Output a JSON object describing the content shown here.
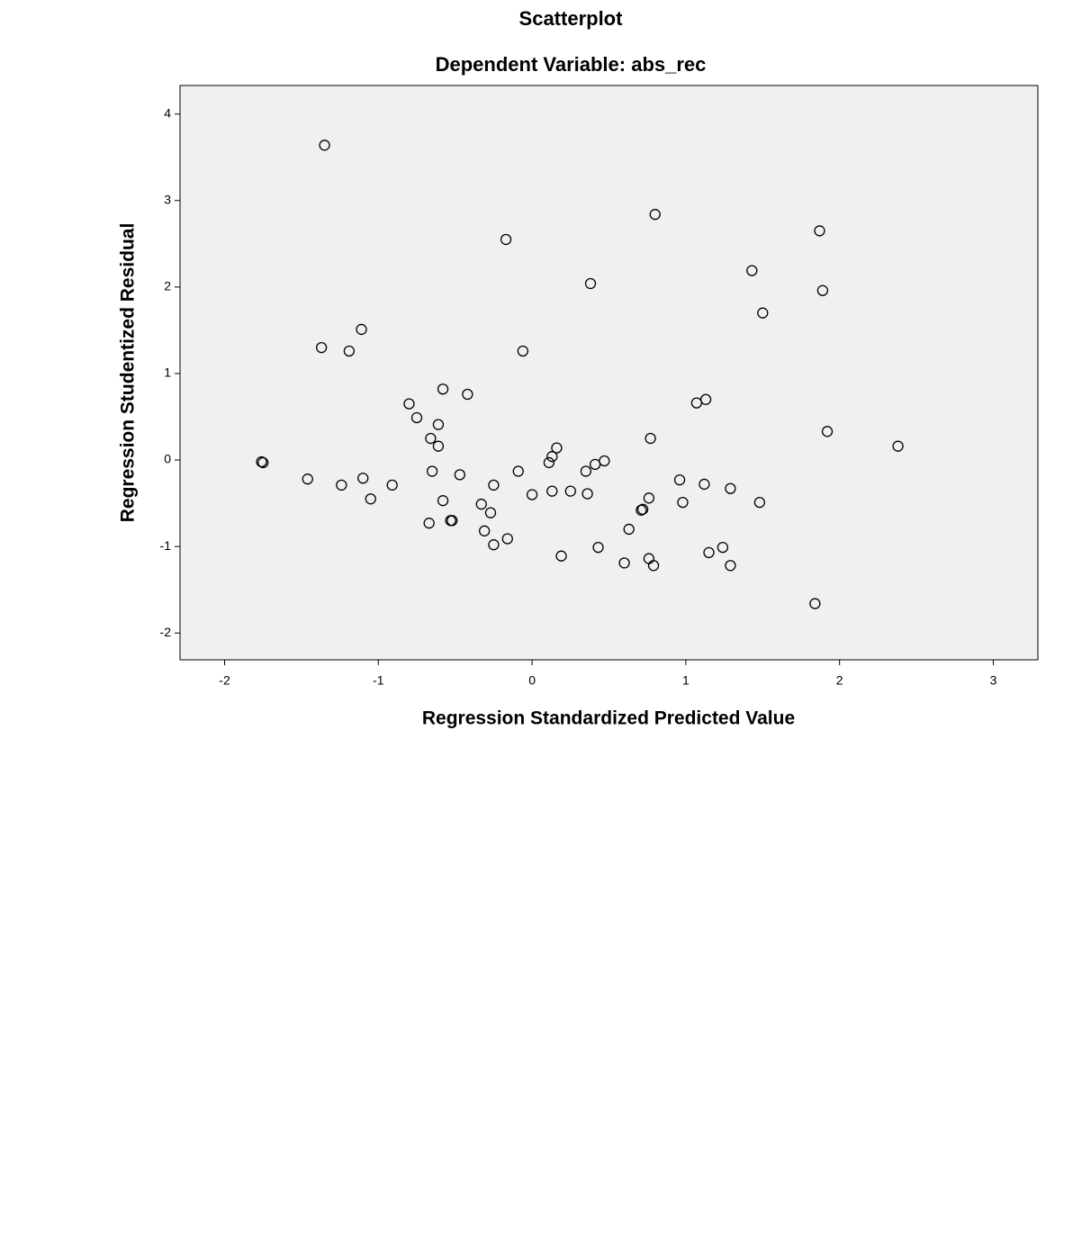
{
  "chart_data": {
    "type": "scatter",
    "title": "Scatterplot",
    "subtitle": "Dependent Variable: abs_rec",
    "x_label": "Regression Standardized Predicted Value",
    "y_label": "Regression Studentized Residual",
    "x": [
      -1.35,
      0.8,
      1.87,
      -0.17,
      1.43,
      0.38,
      1.89,
      1.5,
      -1.11,
      -1.37,
      -1.19,
      -0.06,
      -0.58,
      -0.42,
      1.13,
      1.07,
      -0.8,
      -0.75,
      -0.61,
      -0.66,
      0.77,
      1.92,
      2.38,
      -0.61,
      0.16,
      0.13,
      0.11,
      0.47,
      0.41,
      -1.76,
      -1.75,
      -1.46,
      -1.24,
      -1.1,
      -1.05,
      -0.91,
      -0.65,
      -0.47,
      -0.58,
      -0.25,
      -0.09,
      0.35,
      0.96,
      1.12,
      1.29,
      0.0,
      0.13,
      0.25,
      0.36,
      0.76,
      0.98,
      1.48,
      -0.33,
      -0.27,
      0.71,
      0.72,
      -0.67,
      -0.53,
      -0.52,
      -0.31,
      0.63,
      -0.16,
      -0.25,
      0.43,
      1.24,
      1.15,
      0.19,
      0.6,
      0.76,
      0.79,
      1.29,
      1.84
    ],
    "y": [
      3.64,
      2.84,
      2.65,
      2.55,
      2.19,
      2.04,
      1.96,
      1.7,
      1.51,
      1.3,
      1.26,
      1.26,
      0.82,
      0.76,
      0.7,
      0.66,
      0.65,
      0.49,
      0.41,
      0.25,
      0.25,
      0.33,
      0.16,
      0.16,
      0.14,
      0.04,
      -0.03,
      -0.01,
      -0.05,
      -0.02,
      -0.03,
      -0.22,
      -0.29,
      -0.21,
      -0.45,
      -0.29,
      -0.13,
      -0.17,
      -0.47,
      -0.29,
      -0.13,
      -0.13,
      -0.23,
      -0.28,
      -0.33,
      -0.4,
      -0.36,
      -0.36,
      -0.39,
      -0.44,
      -0.49,
      -0.49,
      -0.51,
      -0.61,
      -0.58,
      -0.57,
      -0.73,
      -0.7,
      -0.7,
      -0.82,
      -0.8,
      -0.91,
      -0.98,
      -1.01,
      -1.01,
      -1.07,
      -1.11,
      -1.19,
      -1.14,
      -1.22,
      -1.22,
      -1.66
    ],
    "xlim": [
      -2.29,
      3.29
    ],
    "ylim": [
      -2.31,
      4.33
    ],
    "xticks": [
      -2,
      -1,
      0,
      1,
      2,
      3
    ],
    "yticks": [
      -2,
      -1,
      0,
      1,
      2,
      3,
      4
    ],
    "grid": false
  }
}
